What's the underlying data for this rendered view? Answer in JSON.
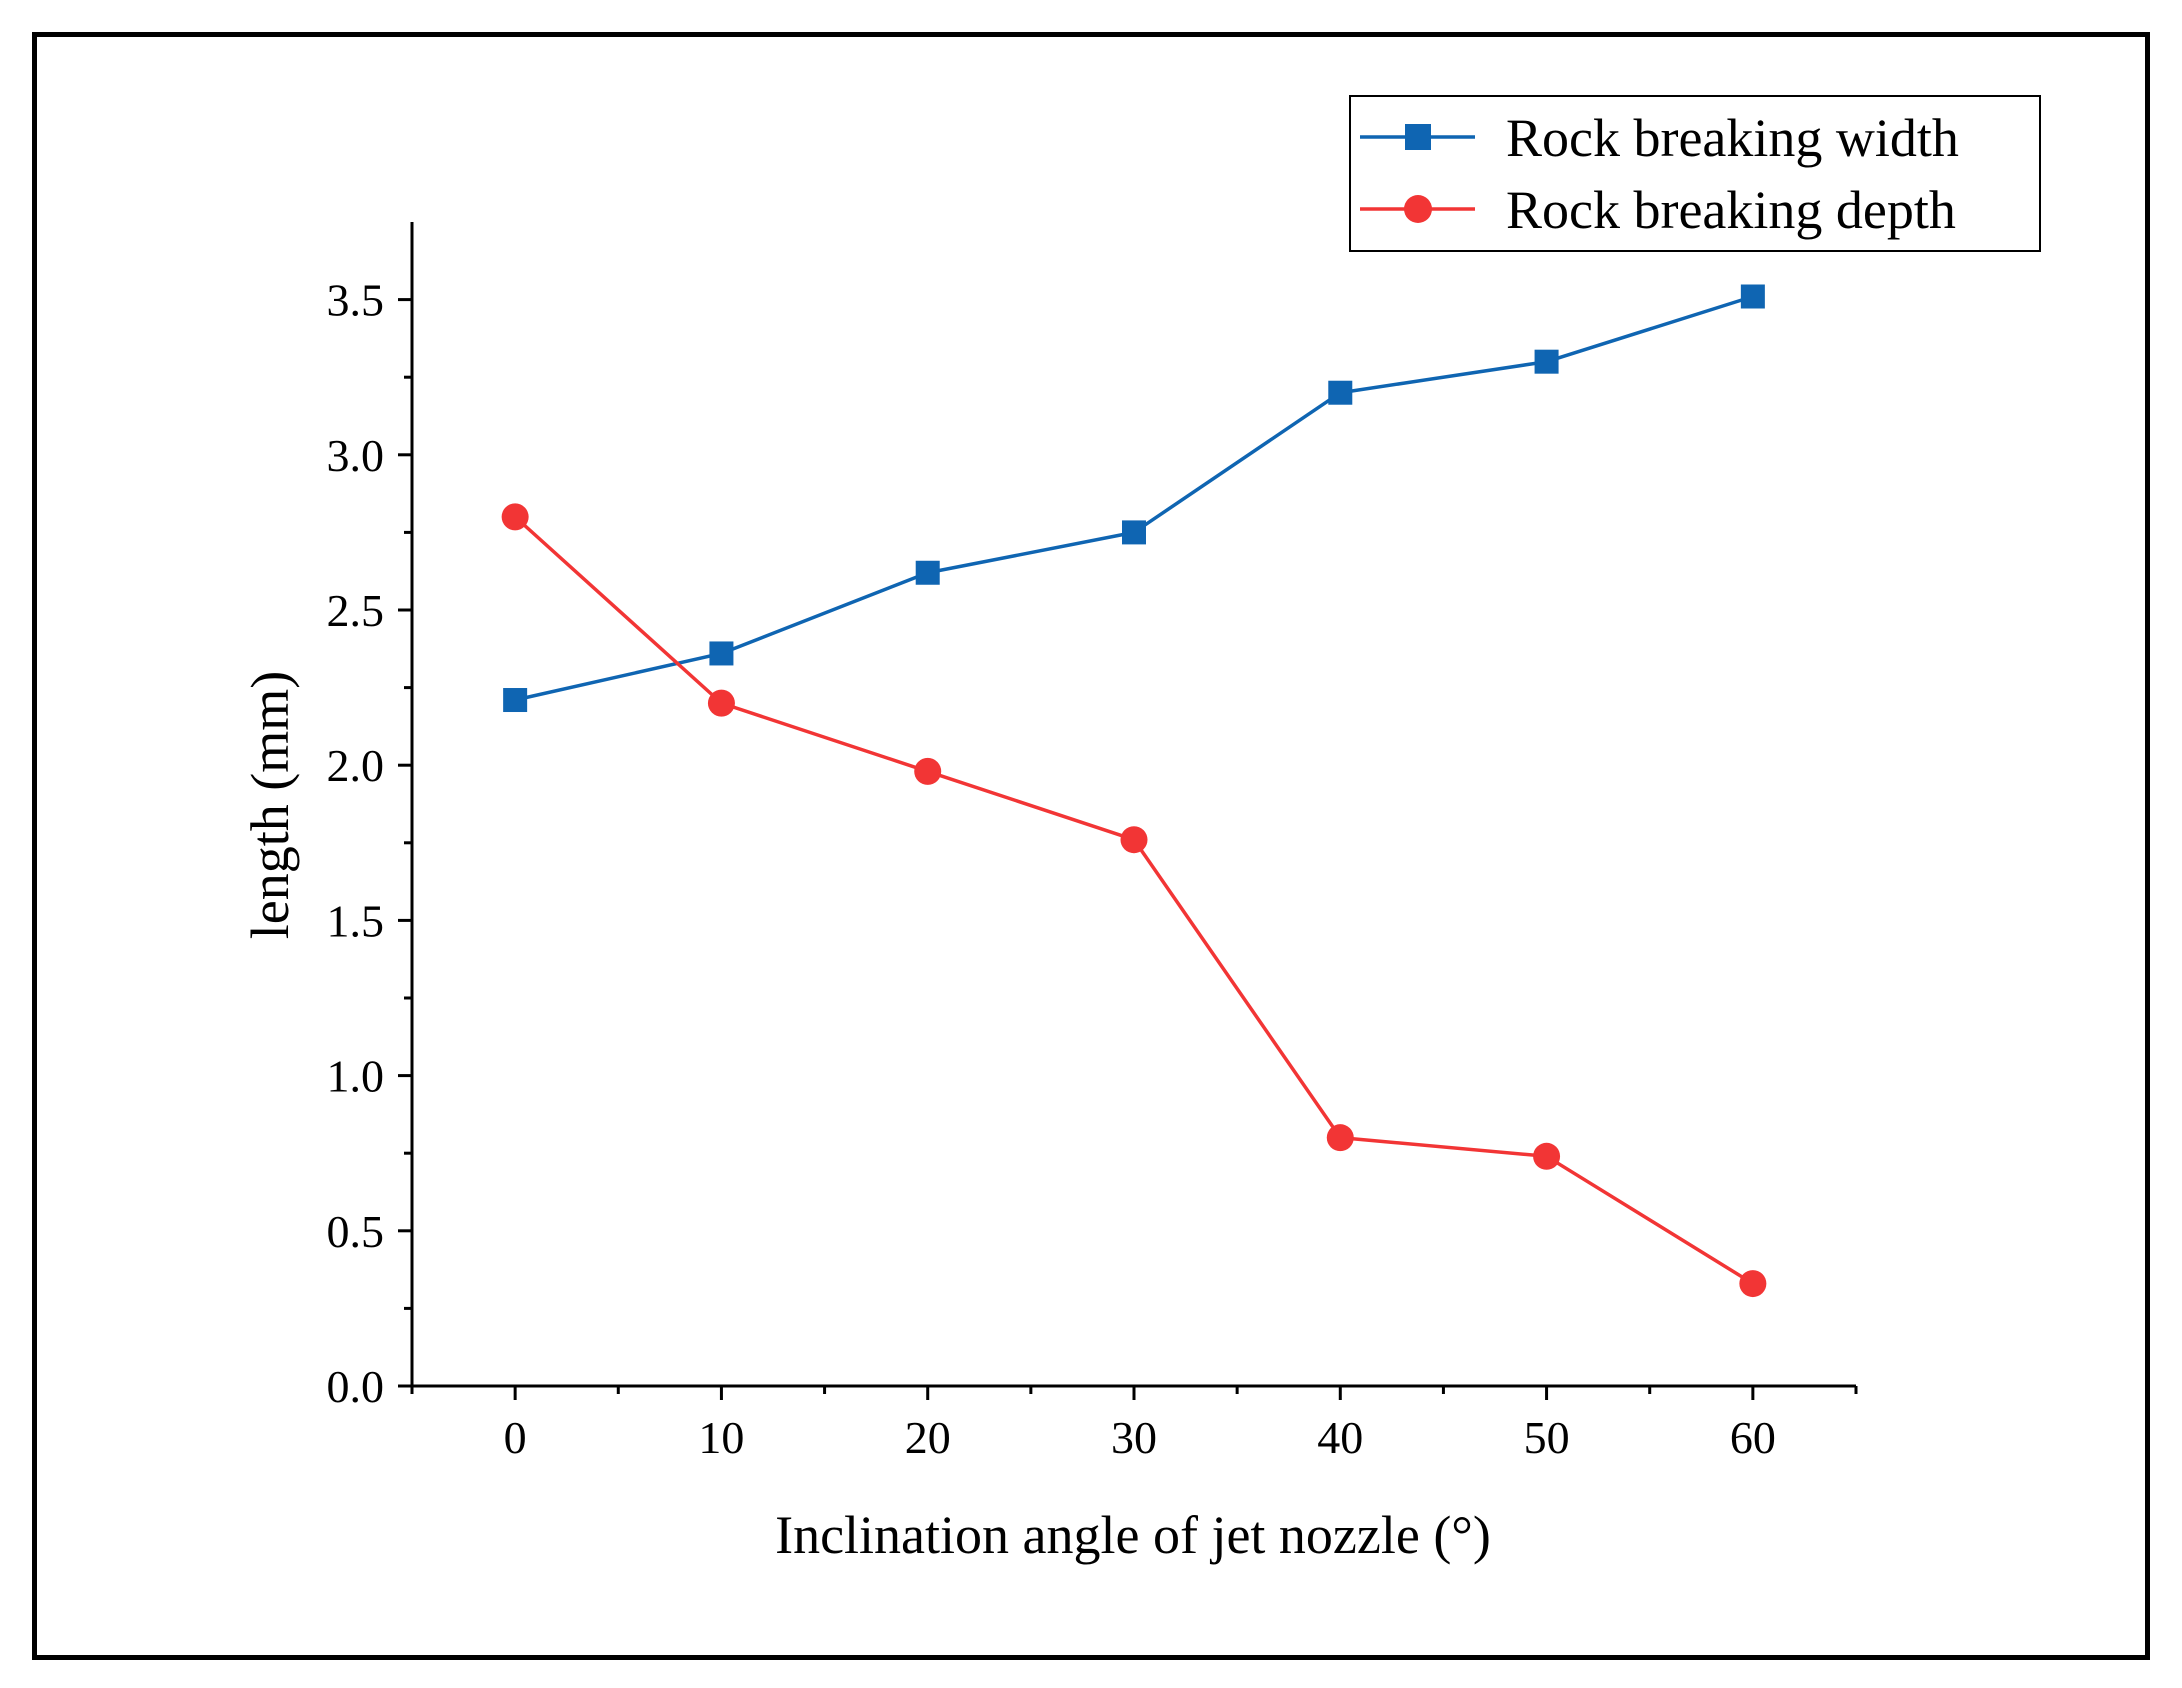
{
  "chart_data": {
    "type": "line",
    "title": "",
    "xlabel": "Inclination angle of jet nozzle  (°)",
    "ylabel": "length (mm)",
    "x": [
      0,
      10,
      20,
      30,
      40,
      50,
      60
    ],
    "xlim": [
      -5,
      65
    ],
    "ylim": [
      0,
      3.75
    ],
    "xticks": [
      "0",
      "10",
      "20",
      "30",
      "40",
      "50",
      "60"
    ],
    "yticks": [
      "0.0",
      "0.5",
      "1.0",
      "1.5",
      "2.0",
      "2.5",
      "3.0",
      "3.5"
    ],
    "grid": false,
    "legend_position": "top-right",
    "series": [
      {
        "name": "Rock breaking width",
        "marker": "square",
        "color": "#0f65b2",
        "values": [
          2.21,
          2.36,
          2.62,
          2.75,
          3.2,
          3.3,
          3.51
        ]
      },
      {
        "name": "Rock breaking depth",
        "marker": "circle",
        "color": "#f23535",
        "values": [
          2.8,
          2.2,
          1.98,
          1.76,
          0.8,
          0.74,
          0.33
        ]
      }
    ]
  }
}
